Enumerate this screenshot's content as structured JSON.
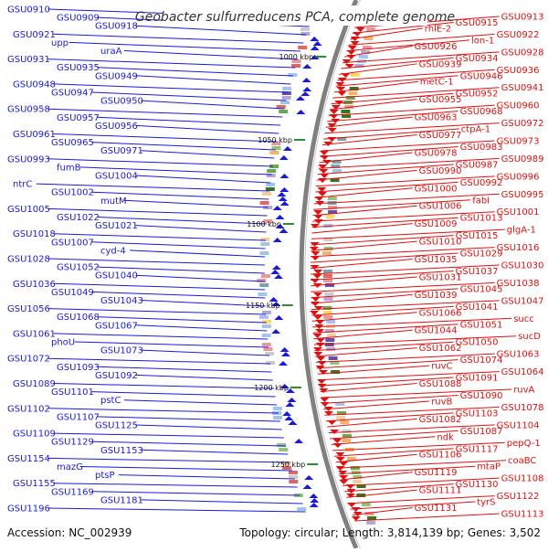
{
  "title": "Geobacter sulfurreducens PCA, complete genome",
  "footer": {
    "accession": "Accession: NC_002939",
    "summary": "Topology: circular; Length: 3,814,139 bp; Genes: 3,502"
  },
  "colors": {
    "forward_strand": "#1a1adb",
    "reverse_strand": "#e01010",
    "backbone": "#808080",
    "tick": "#2e8b2e"
  },
  "kbp_marks": [
    "1000 kbp",
    "1050 kbp",
    "1100 kbp",
    "1150 kbp",
    "1200 kbp",
    "1250 kbp"
  ],
  "left_labels": [
    "GSU0910",
    "GSU0909",
    "GSU0918",
    "GSU0921",
    "upp",
    "uraA",
    "GSU0931",
    "GSU0935",
    "GSU0949",
    "GSU0948",
    "GSU0947",
    "GSU0950",
    "GSU0958",
    "GSU0957",
    "GSU0956",
    "GSU0961",
    "GSU0965",
    "GSU0971",
    "GSU0993",
    "fumB",
    "GSU1004",
    "ntrC",
    "GSU1002",
    "mutM",
    "GSU1005",
    "GSU1022",
    "GSU1021",
    "GSU1018",
    "GSU1007",
    "cyd-4",
    "GSU1028",
    "GSU1052",
    "GSU1040",
    "GSU1036",
    "GSU1049",
    "GSU1043",
    "GSU1056",
    "GSU1068",
    "GSU1067",
    "GSU1061",
    "phoU",
    "GSU1073",
    "GSU1072",
    "GSU1093",
    "GSU1092",
    "GSU1089",
    "GSU1101",
    "pstC",
    "GSU1102",
    "GSU1107",
    "GSU1125",
    "GSU1109",
    "GSU1129",
    "GSU1153",
    "GSU1154",
    "mazG",
    "ptsP",
    "GSU1155",
    "GSU1169",
    "GSU1181",
    "GSU1196"
  ],
  "right_labels": [
    "GSU0913",
    "GSU0915",
    "rhlE-2",
    "GSU0922",
    "lon-1",
    "GSU0926",
    "GSU0928",
    "GSU0934",
    "GSU0939",
    "GSU0936",
    "GSU0946",
    "metC-1",
    "GSU0941",
    "GSU0952",
    "GSU0955",
    "GSU0960",
    "GSU0968",
    "GSU0963",
    "GSU0972",
    "ctpA-1",
    "GSU0977",
    "GSU0973",
    "GSU0983",
    "GSU0978",
    "GSU0989",
    "GSU0987",
    "GSU0990",
    "GSU0996",
    "GSU0992",
    "GSU1000",
    "GSU0995",
    "fabI",
    "GSU1006",
    "GSU1001",
    "GSU1013",
    "GSU1009",
    "glgA-1",
    "GSU1015",
    "GSU1010",
    "GSU1016",
    "GSU1029",
    "GSU1035",
    "GSU1030",
    "GSU1037",
    "GSU1031",
    "GSU1038",
    "GSU1045",
    "GSU1039",
    "GSU1047",
    "GSU1041",
    "GSU1066",
    "succ",
    "GSU1051",
    "GSU1044",
    "sucD",
    "GSU1050",
    "GSU1062",
    "GSU1063",
    "GSU1074",
    "ruvC",
    "GSU1064",
    "GSU1091",
    "GSU1088",
    "ruvA",
    "GSU1090",
    "ruvB",
    "GSU1078",
    "GSU1103",
    "GSU1082",
    "GSU1104",
    "GSU1087",
    "ndk",
    "pepQ-1",
    "GSU1117",
    "GSU1106",
    "coaBC",
    "mtaP",
    "GSU1119",
    "GSU1108",
    "GSU1130",
    "GSU1111",
    "GSU1122",
    "tyrS",
    "GSU1131",
    "GSU1113"
  ]
}
